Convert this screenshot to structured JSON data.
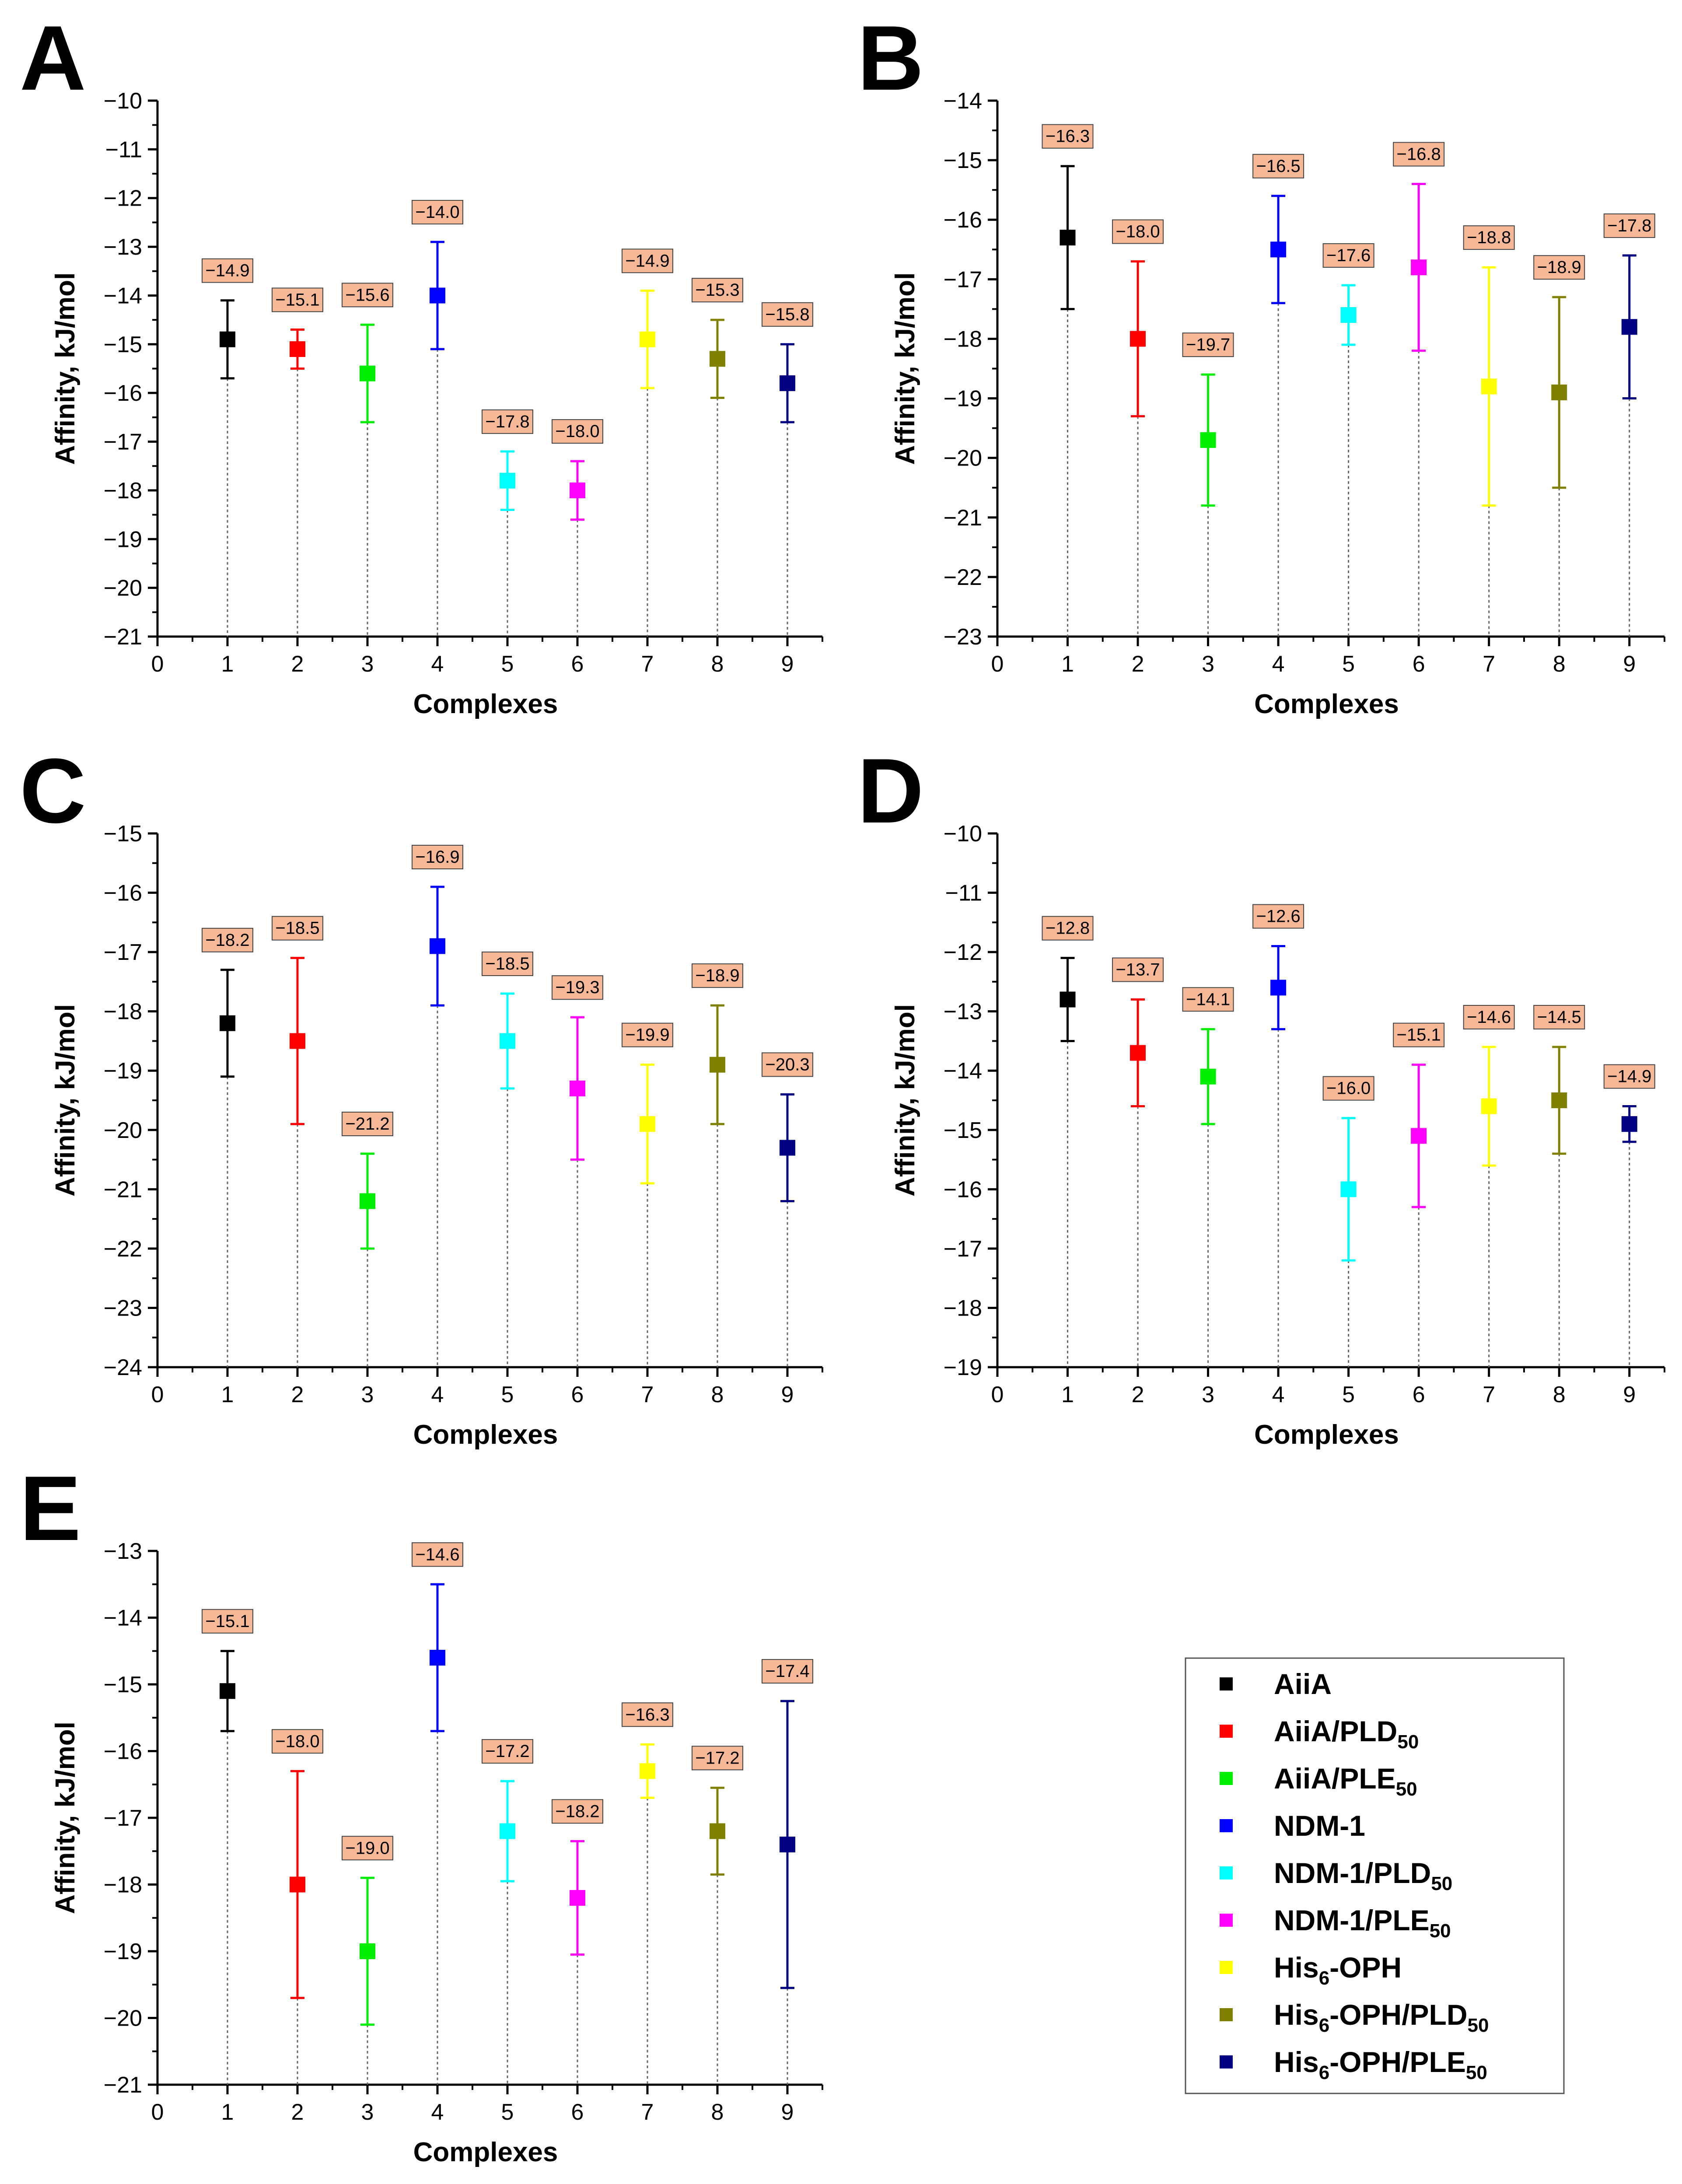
{
  "legend": {
    "items": [
      {
        "label": "AiiA",
        "sub": "",
        "color": "#000000"
      },
      {
        "label": "AiiA/PLD",
        "sub": "50",
        "color": "#ff0000"
      },
      {
        "label": "AiiA/PLE",
        "sub": "50",
        "color": "#00ee00"
      },
      {
        "label": "NDM-1",
        "sub": "",
        "color": "#0000ff"
      },
      {
        "label": "NDM-1/PLD",
        "sub": "50",
        "color": "#00ffff"
      },
      {
        "label": "NDM-1/PLE",
        "sub": "50",
        "color": "#ff00ff"
      },
      {
        "label": "His",
        "sub": "6",
        "suffix": "-OPH",
        "color": "#ffff00"
      },
      {
        "label": "His",
        "sub": "6",
        "suffix": "-OPH/PLD",
        "sub2": "50",
        "color": "#808000"
      },
      {
        "label": "His",
        "sub": "6",
        "suffix": "-OPH/PLE",
        "sub2": "50",
        "color": "#000080"
      }
    ]
  },
  "chart_data": [
    {
      "panel": "A",
      "type": "scatter",
      "xlabel": "Complexes",
      "ylabel": "Affinity, kJ/mol",
      "xlim": [
        0,
        9.5
      ],
      "ylim": [
        -21,
        -10
      ],
      "xticks": [
        0,
        1,
        2,
        3,
        4,
        5,
        6,
        7,
        8,
        9
      ],
      "yticks": [
        -10,
        -11,
        -12,
        -13,
        -14,
        -15,
        -16,
        -17,
        -18,
        -19,
        -20,
        -21
      ],
      "x": [
        1,
        2,
        3,
        4,
        5,
        6,
        7,
        8,
        9
      ],
      "values": [
        -14.9,
        -15.1,
        -15.6,
        -14.0,
        -17.8,
        -18.0,
        -14.9,
        -15.3,
        -15.8
      ],
      "errors": [
        0.8,
        0.4,
        1.0,
        1.1,
        0.6,
        0.6,
        1.0,
        0.8,
        0.8
      ],
      "labels": [
        "-14.9",
        "-15.1",
        "-15.6",
        "-14.0",
        "-17.8",
        "-18.0",
        "-14.9",
        "-15.3",
        "-15.8"
      ]
    },
    {
      "panel": "B",
      "type": "scatter",
      "xlabel": "Complexes",
      "ylabel": "Affinity, kJ/mol",
      "xlim": [
        0,
        9.5
      ],
      "ylim": [
        -23,
        -14
      ],
      "xticks": [
        0,
        1,
        2,
        3,
        4,
        5,
        6,
        7,
        8,
        9
      ],
      "yticks": [
        -14,
        -15,
        -16,
        -17,
        -18,
        -19,
        -20,
        -21,
        -22,
        -23
      ],
      "x": [
        1,
        2,
        3,
        4,
        5,
        6,
        7,
        8,
        9
      ],
      "values": [
        -16.3,
        -18.0,
        -19.7,
        -16.5,
        -17.6,
        -16.8,
        -18.8,
        -18.9,
        -17.8
      ],
      "errors": [
        1.2,
        1.3,
        1.1,
        0.9,
        0.5,
        1.4,
        2.0,
        1.6,
        1.2
      ],
      "labels": [
        "-16.3",
        "-18.0",
        "-19.7",
        "-16.5",
        "-17.6",
        "-16.8",
        "-18.8",
        "-18.9",
        "-17.8"
      ]
    },
    {
      "panel": "C",
      "type": "scatter",
      "xlabel": "Complexes",
      "ylabel": "Affinity, kJ/mol",
      "xlim": [
        0,
        9.5
      ],
      "ylim": [
        -24,
        -15
      ],
      "xticks": [
        0,
        1,
        2,
        3,
        4,
        5,
        6,
        7,
        8,
        9
      ],
      "yticks": [
        -15,
        -16,
        -17,
        -18,
        -19,
        -20,
        -21,
        -22,
        -23,
        -24
      ],
      "x": [
        1,
        2,
        3,
        4,
        5,
        6,
        7,
        8,
        9
      ],
      "values": [
        -18.2,
        -18.5,
        -21.2,
        -16.9,
        -18.5,
        -19.3,
        -19.9,
        -18.9,
        -20.3
      ],
      "errors": [
        0.9,
        1.4,
        0.8,
        1.0,
        0.8,
        1.2,
        1.0,
        1.0,
        0.9
      ],
      "labels": [
        "-18.2",
        "-18.5",
        "-21.2",
        "-16.9",
        "-18.5",
        "-19.3",
        "-19.9",
        "-18.9",
        "-20.3"
      ]
    },
    {
      "panel": "D",
      "type": "scatter",
      "xlabel": "Complexes",
      "ylabel": "Affinity, kJ/mol",
      "xlim": [
        0,
        9.5
      ],
      "ylim": [
        -19,
        -10
      ],
      "xticks": [
        0,
        1,
        2,
        3,
        4,
        5,
        6,
        7,
        8,
        9
      ],
      "yticks": [
        -10,
        -11,
        -12,
        -13,
        -14,
        -15,
        -16,
        -17,
        -18,
        -19
      ],
      "x": [
        1,
        2,
        3,
        4,
        5,
        6,
        7,
        8,
        9
      ],
      "values": [
        -12.8,
        -13.7,
        -14.1,
        -12.6,
        -16.0,
        -15.1,
        -14.6,
        -14.5,
        -14.9
      ],
      "errors": [
        0.7,
        0.9,
        0.8,
        0.7,
        1.2,
        1.2,
        1.0,
        0.9,
        0.3
      ],
      "labels": [
        "-12.8",
        "-13.7",
        "-14.1",
        "-12.6",
        "-16.0",
        "-15.1",
        "-14.6",
        "-14.5",
        "-14.9"
      ]
    },
    {
      "panel": "E",
      "type": "scatter",
      "xlabel": "Complexes",
      "ylabel": "Affinity, kJ/mol",
      "xlim": [
        0,
        9.5
      ],
      "ylim": [
        -21,
        -13
      ],
      "xticks": [
        0,
        1,
        2,
        3,
        4,
        5,
        6,
        7,
        8,
        9
      ],
      "yticks": [
        -13,
        -14,
        -15,
        -16,
        -17,
        -18,
        -19,
        -20,
        -21
      ],
      "x": [
        1,
        2,
        3,
        4,
        5,
        6,
        7,
        8,
        9
      ],
      "values": [
        -15.1,
        -18.0,
        -19.0,
        -14.6,
        -17.2,
        -18.2,
        -16.3,
        -17.2,
        -17.4
      ],
      "errors": [
        0.6,
        1.7,
        1.1,
        1.1,
        0.75,
        0.85,
        0.4,
        0.65,
        2.15
      ],
      "labels": [
        "-15.1",
        "-18.0",
        "-19.0",
        "-14.6",
        "-17.2",
        "-18.2",
        "-16.3",
        "-17.2",
        "-17.4"
      ]
    }
  ]
}
